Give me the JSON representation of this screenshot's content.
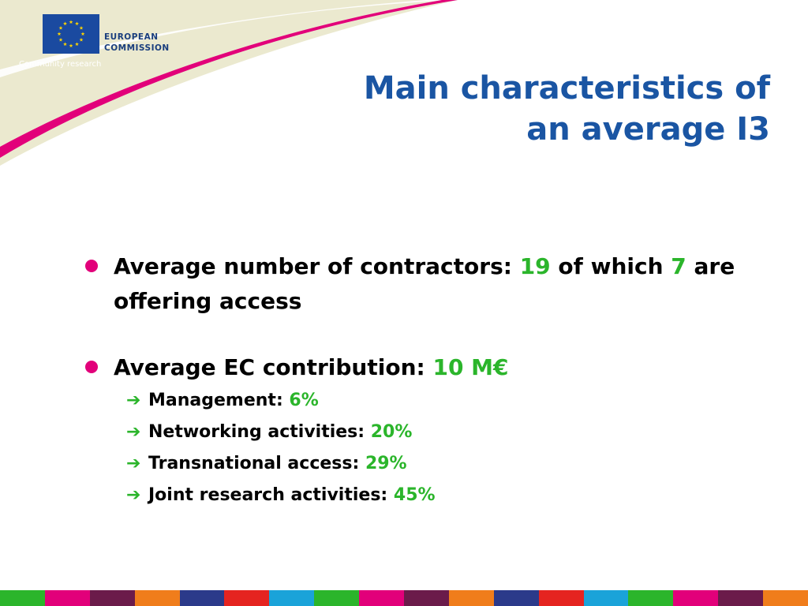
{
  "header": {
    "logo_line1": "EUROPEAN",
    "logo_line2": "COMMISSION",
    "tagline": "Community research"
  },
  "title": {
    "line1": "Main characteristics of",
    "line2": "an average I3"
  },
  "bullets": [
    {
      "text_before": "Average number of contractors: ",
      "highlight1": "19",
      "text_middle": " of which ",
      "highlight2": "7",
      "text_after": " are offering access"
    },
    {
      "text_before": "Average EC contribution: ",
      "highlight1": "10 M€",
      "sub_items": [
        {
          "label": "Management: ",
          "value": "6%"
        },
        {
          "label": "Networking activities: ",
          "value": "20%"
        },
        {
          "label": "Transnational access: ",
          "value": "29%"
        },
        {
          "label": "Joint research activities: ",
          "value": "45%"
        }
      ]
    }
  ],
  "icons": {
    "bullet": "pink-dot-icon",
    "sub_bullet": "green-arrow-icon",
    "logo": "eu-flag-icon"
  },
  "colors": {
    "title": "#1a55a3",
    "highlight": "#2bb52b",
    "bullet": "#e2007a",
    "swoosh": "#e2007a",
    "logo_text": "#1a3e7e",
    "strip": [
      "#2bb52b",
      "#e2007a",
      "#6b1b4a",
      "#f07d1b",
      "#2b3a8a",
      "#e52420",
      "#1aa3d9",
      "#2bb52b",
      "#e2007a",
      "#6b1b4a",
      "#f07d1b",
      "#2b3a8a",
      "#e52420",
      "#1aa3d9",
      "#2bb52b",
      "#e2007a",
      "#6b1b4a",
      "#f07d1b"
    ]
  }
}
